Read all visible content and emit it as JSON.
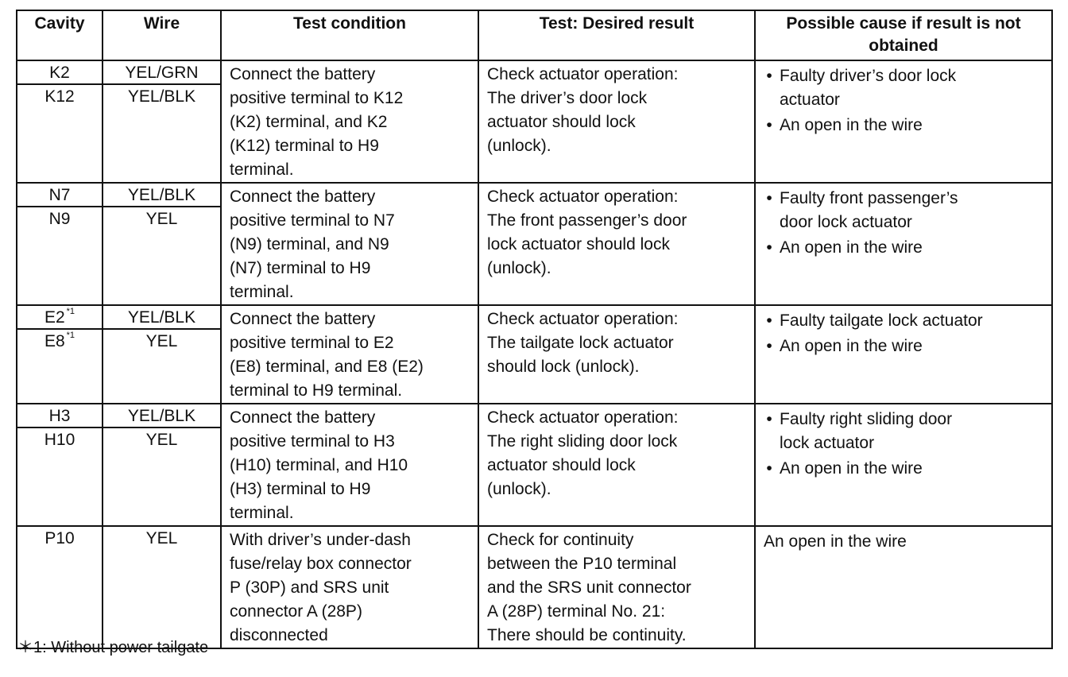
{
  "headers": [
    "Cavity",
    "Wire",
    "Test condition",
    "Test: Desired result",
    "Possible cause if result is not obtained"
  ],
  "rows": [
    {
      "cavities": [
        {
          "id": "K2",
          "sup": ""
        },
        {
          "id": "K12",
          "sup": ""
        }
      ],
      "wires": [
        "YEL/GRN",
        "YEL/BLK"
      ],
      "condition": [
        "Connect the battery",
        "positive terminal to K12",
        "(K2) terminal, and K2",
        "(K12) terminal to H9",
        "terminal."
      ],
      "result": [
        "Check actuator operation:",
        "The driver’s door lock",
        "actuator should lock",
        "(unlock)."
      ],
      "causes": [
        [
          "Faulty driver’s door lock",
          "actuator"
        ],
        [
          "An open in the wire"
        ]
      ],
      "bulleted": true
    },
    {
      "cavities": [
        {
          "id": "N7",
          "sup": ""
        },
        {
          "id": "N9",
          "sup": ""
        }
      ],
      "wires": [
        "YEL/BLK",
        "YEL"
      ],
      "condition": [
        "Connect the battery",
        "positive terminal to N7",
        "(N9) terminal, and N9",
        "(N7) terminal to H9",
        "terminal."
      ],
      "result": [
        "Check actuator operation:",
        "The front passenger’s door",
        "lock actuator should lock",
        "(unlock)."
      ],
      "causes": [
        [
          "Faulty front passenger’s",
          "door lock actuator"
        ],
        [
          "An open in the wire"
        ]
      ],
      "bulleted": true
    },
    {
      "cavities": [
        {
          "id": "E2",
          "sup": "*1"
        },
        {
          "id": "E8",
          "sup": "*1"
        }
      ],
      "wires": [
        "YEL/BLK",
        "YEL"
      ],
      "condition": [
        "Connect the battery",
        "positive terminal to E2",
        "(E8) terminal, and E8 (E2)",
        "terminal to H9 terminal."
      ],
      "result": [
        "Check actuator operation:",
        "The tailgate lock actuator",
        "should lock (unlock)."
      ],
      "causes": [
        [
          "Faulty tailgate lock actuator"
        ],
        [
          "An open in the wire"
        ]
      ],
      "bulleted": true
    },
    {
      "cavities": [
        {
          "id": "H3",
          "sup": ""
        },
        {
          "id": "H10",
          "sup": ""
        }
      ],
      "wires": [
        "YEL/BLK",
        "YEL"
      ],
      "condition": [
        "Connect the battery",
        "positive terminal to H3",
        "(H10) terminal, and H10",
        "(H3) terminal to H9",
        "terminal."
      ],
      "result": [
        "Check actuator operation:",
        "The right sliding door lock",
        "actuator should lock",
        "(unlock)."
      ],
      "causes": [
        [
          "Faulty right sliding door",
          "lock actuator"
        ],
        [
          "An open in the wire"
        ]
      ],
      "bulleted": true
    },
    {
      "cavities": [
        {
          "id": "P10",
          "sup": ""
        }
      ],
      "wires": [
        "YEL"
      ],
      "condition": [
        "With driver’s under-dash",
        "fuse/relay box connector",
        "P (30P) and SRS unit",
        "connector A (28P)",
        "disconnected"
      ],
      "result": [
        "Check for continuity",
        "between the P10 terminal",
        "and the SRS unit connector",
        "A (28P) terminal No. 21:",
        "There should be continuity."
      ],
      "causes": [
        [
          "An open in the wire"
        ]
      ],
      "bulleted": false
    }
  ],
  "bullet_glyph": "•",
  "footnote": "＊1: Without power tailgate"
}
